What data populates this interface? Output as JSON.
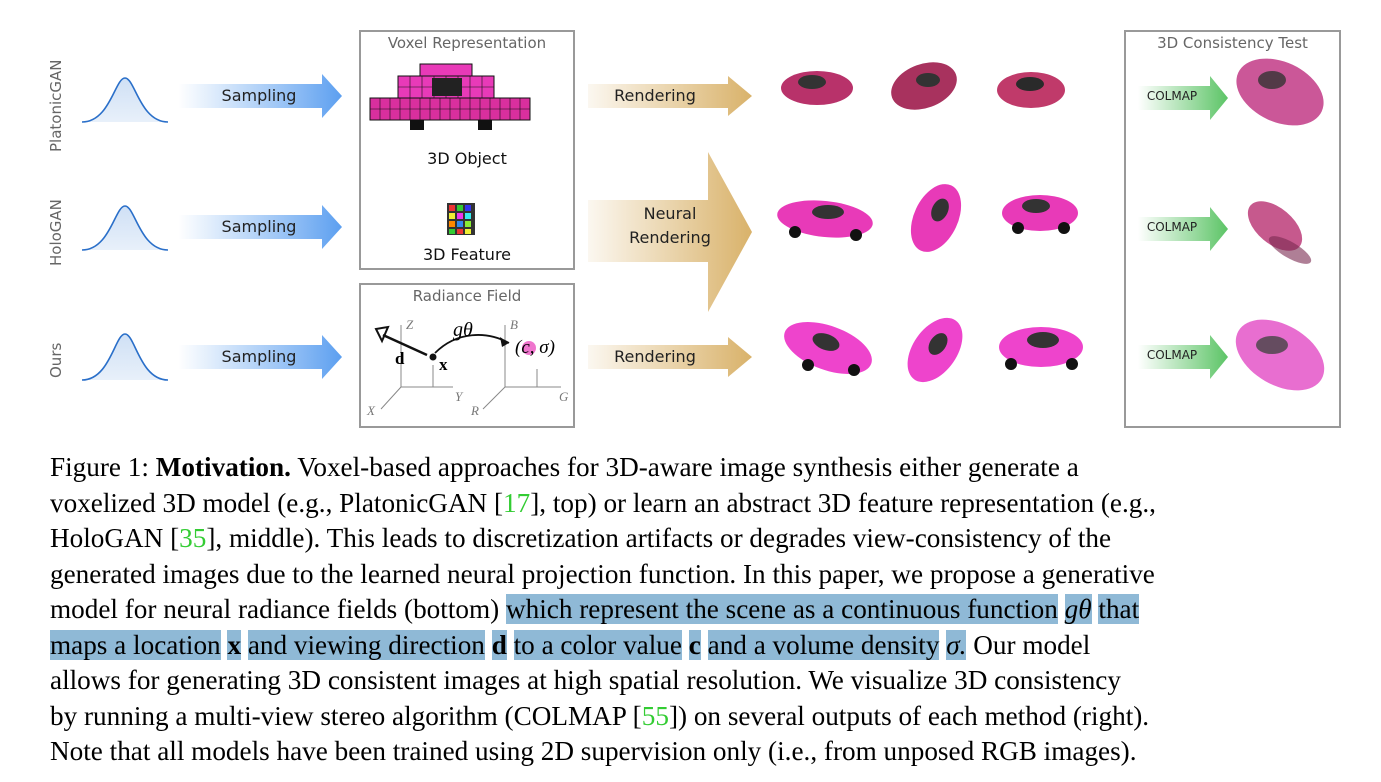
{
  "rows": [
    {
      "label": "PlatonicGAN",
      "sampling": "Sampling"
    },
    {
      "label": "HoloGAN",
      "sampling": "Sampling"
    },
    {
      "label": "Ours",
      "sampling": "Sampling"
    }
  ],
  "voxel_box": {
    "title": "Voxel Representation",
    "object_label": "3D Object",
    "feature_label": "3D Feature"
  },
  "radiance_box": {
    "title": "Radiance Field",
    "g_label": "gθ",
    "x_label": "x",
    "d_label": "d",
    "c_sigma": "(c, σ)",
    "axis_z": "Z",
    "axis_x": "X",
    "axis_y": "Y",
    "axis_b": "B",
    "axis_r": "R",
    "axis_g": "G"
  },
  "render_labels": {
    "top": "Rendering",
    "middle_line1": "Neural",
    "middle_line2": "Rendering",
    "bottom": "Rendering"
  },
  "consistency_box": {
    "title": "3D Consistency Test",
    "colmap": "COLMAP"
  },
  "colors": {
    "car_pink": "#e83ab8",
    "sampling_arrow": "#6aa8f0",
    "render_arrow": "#d9b26a",
    "colmap_arrow": "#5cc466",
    "highlight": "#8fb9d6",
    "cite": "#33cc33"
  },
  "caption": {
    "l1": [
      "Figure 1:",
      "Motivation.",
      "Voxel-based approaches for 3D-aware image synthesis either generate a"
    ],
    "l2a": "voxelized 3D model (e.g., PlatonicGAN [",
    "l2cite": "17",
    "l2b": "], top) or learn an abstract 3D feature representation (e.g.,",
    "l3a": "HoloGAN [",
    "l3cite": "35",
    "l3b": "], middle). This leads to discretization artifacts or degrades view-consistency of the",
    "l4": "generated images due to the learned neural projection function. In this paper, we propose a generative",
    "l5a": "model for neural radiance fields (bottom) ",
    "l5hl": "which represent the scene as a continuous function",
    "l5g": "gθ",
    "l5hl2": "that",
    "l6hl1": "maps a location",
    "l6x": "x",
    "l6hl2": "and viewing direction",
    "l6d": "d",
    "l6hl3": "to a color value",
    "l6c": "c",
    "l6hl4": "and a volume density",
    "l6s": "σ.",
    "l6b": "Our model",
    "l7": "allows for generating 3D consistent images at high spatial resolution. We visualize 3D consistency",
    "l8a": "by running a multi-view stereo algorithm (COLMAP [",
    "l8cite": "55",
    "l8b": "]) on several outputs of each method (right).",
    "l9": "Note that all models have been trained using 2D supervision only (i.e., from unposed RGB images)."
  }
}
